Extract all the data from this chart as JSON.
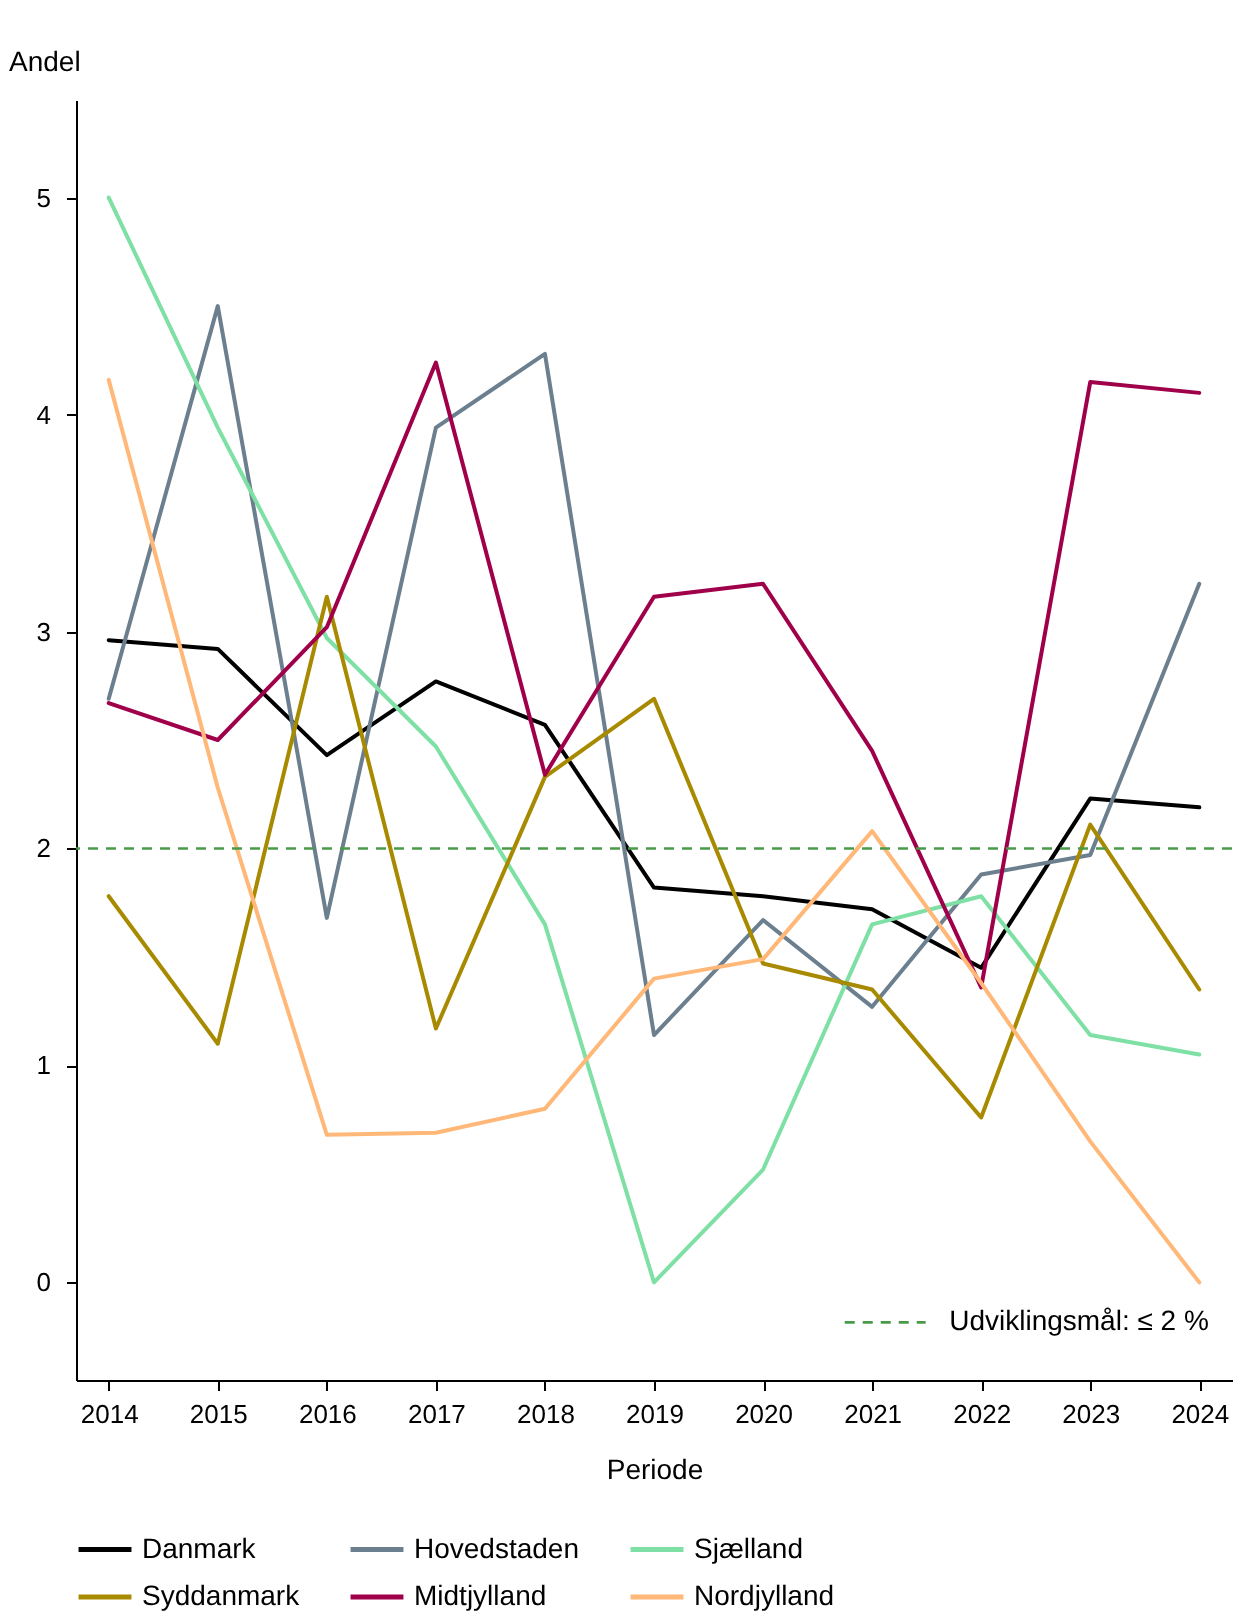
{
  "chart_data": {
    "type": "line",
    "xlabel": "Periode",
    "ylabel": "Andel",
    "x": [
      2014,
      2015,
      2016,
      2017,
      2018,
      2019,
      2020,
      2021,
      2022,
      2023,
      2024
    ],
    "series": [
      {
        "name": "Danmark",
        "color": "#000000",
        "values": [
          2.96,
          2.92,
          2.43,
          2.77,
          2.57,
          1.82,
          1.78,
          1.72,
          1.45,
          2.23,
          2.19
        ]
      },
      {
        "name": "Hovedstaden",
        "color": "#6b7f8f",
        "values": [
          2.69,
          4.5,
          1.68,
          3.94,
          4.28,
          1.14,
          1.67,
          1.27,
          1.88,
          1.97,
          3.22
        ]
      },
      {
        "name": "Sjælland",
        "color": "#7ee0a4",
        "values": [
          5.0,
          3.94,
          2.97,
          2.47,
          1.65,
          0.0,
          0.52,
          1.65,
          1.78,
          1.14,
          1.05
        ]
      },
      {
        "name": "Syddanmark",
        "color": "#a88a00",
        "values": [
          1.78,
          1.1,
          3.16,
          1.17,
          2.33,
          2.69,
          1.47,
          1.35,
          0.76,
          2.11,
          1.35
        ]
      },
      {
        "name": "Midtjylland",
        "color": "#a0004a",
        "values": [
          2.67,
          2.5,
          3.02,
          4.24,
          2.34,
          3.16,
          3.22,
          2.45,
          1.36,
          4.15,
          4.1
        ]
      },
      {
        "name": "Nordjylland",
        "color": "#ffb878",
        "values": [
          4.16,
          2.28,
          0.68,
          0.69,
          0.8,
          1.4,
          1.49,
          2.08,
          1.38,
          0.65,
          0.0
        ]
      }
    ],
    "ref_lines": [
      {
        "axis": "y",
        "value": 2,
        "label": "Udviklingsmål: ≤ 2 %",
        "color": "#4a9a4a",
        "line_style": "dashed"
      }
    ],
    "xlim": [
      2013.7,
      2024.3
    ],
    "xticks": [
      2014,
      2015,
      2016,
      2017,
      2018,
      2019,
      2020,
      2021,
      2022,
      2023,
      2024
    ],
    "ylim": [
      -0.45,
      5.45
    ],
    "yticks": [
      0,
      1,
      2,
      3,
      4,
      5
    ],
    "grid": false,
    "legend": "bottom",
    "marker": "none",
    "line_style": "solid"
  }
}
